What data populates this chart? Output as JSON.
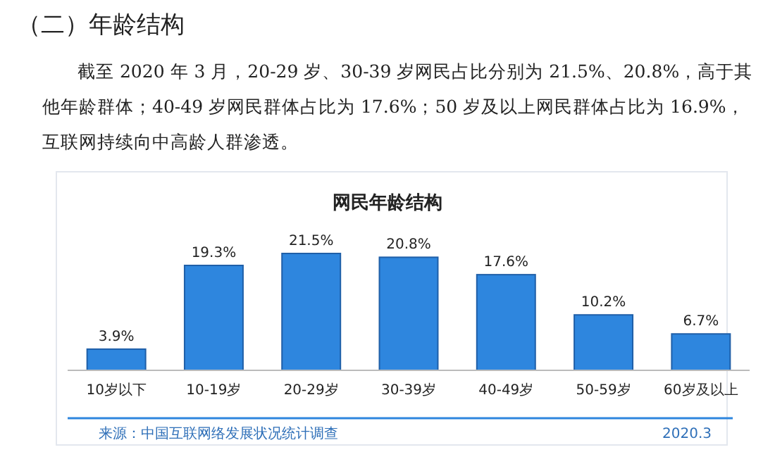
{
  "chart_data": {
    "type": "bar",
    "title": "网民年龄结构",
    "categories": [
      "10岁以下",
      "10-19岁",
      "20-29岁",
      "30-39岁",
      "40-49岁",
      "50-59岁",
      "60岁及以上"
    ],
    "values": [
      3.9,
      19.3,
      21.5,
      20.8,
      17.6,
      10.2,
      6.7
    ],
    "value_labels": [
      "3.9%",
      "19.3%",
      "21.5%",
      "20.8%",
      "17.6%",
      "10.2%",
      "6.7%"
    ],
    "color": "#2e86de",
    "annotations": [
      "（二）年龄结构",
      "截至 2020 年 3 月，20-29 岁、30-39 岁网民占比分别为 21.5%、20.8%，高于其他年龄群体；40-49 岁网民群体占比为 17.6%；50 岁及以上网民群体占比为 16.9%，互联网持续向中高龄人群渗透。",
      "来源：中国互联网络发展状况统计调查",
      "2020.3"
    ]
  }
}
